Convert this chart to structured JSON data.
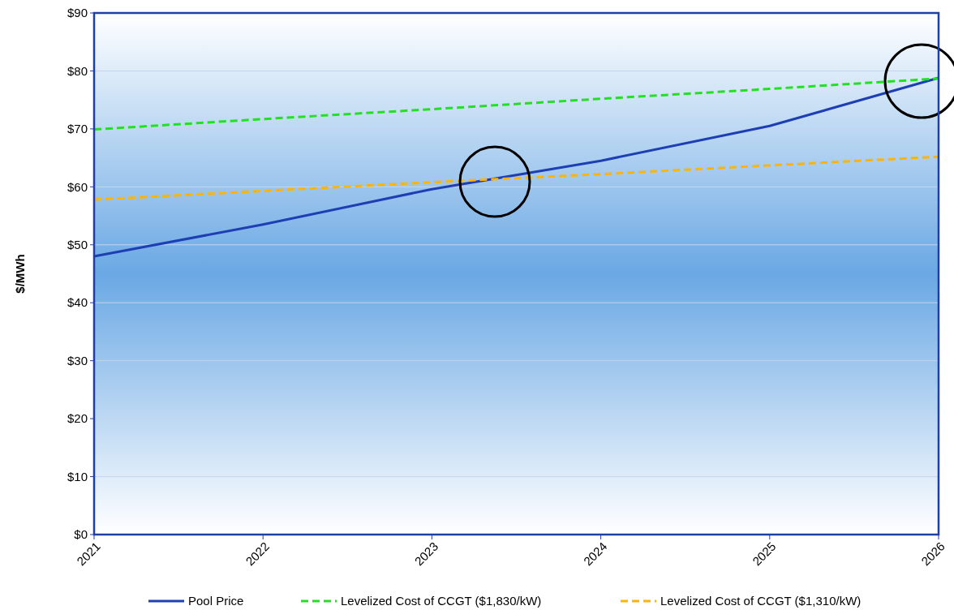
{
  "chart_data": {
    "type": "line",
    "ylabel": "$/MWh",
    "categories": [
      "2021",
      "2022",
      "2023",
      "2024",
      "2025",
      "2026"
    ],
    "series": [
      {
        "name": "Pool Price",
        "color": "#1e3fb4",
        "line_style": "solid",
        "values": [
          48,
          53.5,
          59.6,
          64.5,
          70.5,
          78.8
        ]
      },
      {
        "name": "Levelized Cost of CCGT ($1,830/kW)",
        "color": "#22e022",
        "line_style": "dashed",
        "values": [
          69.9,
          71.7,
          73.4,
          75.2,
          76.9,
          78.7
        ]
      },
      {
        "name": "Levelized Cost of CCGT ($1,310/kW)",
        "color": "#ffb400",
        "line_style": "dashed",
        "values": [
          57.8,
          59.3,
          60.8,
          62.2,
          63.7,
          65.2
        ]
      }
    ],
    "ylim": [
      0,
      90
    ],
    "yticks": [
      {
        "value": 0,
        "label": "$0"
      },
      {
        "value": 10,
        "label": "$10"
      },
      {
        "value": 20,
        "label": "$20"
      },
      {
        "value": 30,
        "label": "$30"
      },
      {
        "value": 40,
        "label": "$40"
      },
      {
        "value": 50,
        "label": "$50"
      },
      {
        "value": 60,
        "label": "$60"
      },
      {
        "value": 70,
        "label": "$70"
      },
      {
        "value": 80,
        "label": "$80"
      },
      {
        "value": 90,
        "label": "$90"
      }
    ],
    "grid": "y",
    "legend": "bottom",
    "marker": "none"
  }
}
